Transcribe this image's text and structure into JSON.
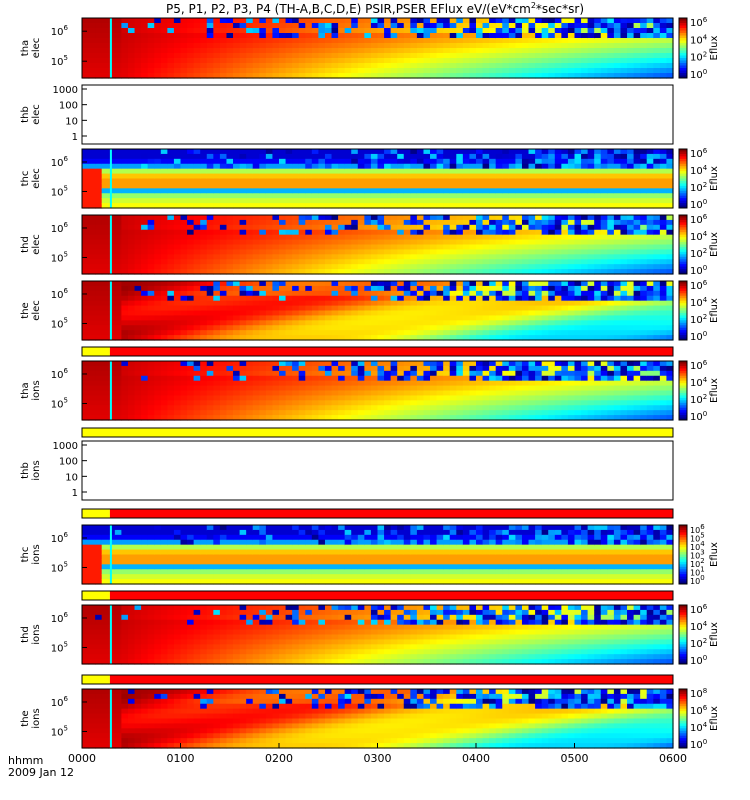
{
  "title": "P5, P1, P2, P3, P4 (TH-A,B,C,D,E) PSIR,PSER EFlux eV/(eV*cm",
  "title_sup": "2",
  "title_tail": "*sec*sr)",
  "footer": {
    "label_line1": "hhmm",
    "label_line2": "2009 Jan 12"
  },
  "colorbar_label": "Eflux",
  "colors": {
    "red": "#ff0000",
    "yellow": "#ffff00",
    "black": "#000000"
  },
  "chart_data": {
    "type": "heatmap",
    "x_ticks": [
      "0000",
      "0100",
      "0200",
      "0300",
      "0400",
      "0500",
      "0600"
    ],
    "xlim": [
      "00:00",
      "06:00"
    ],
    "panels": [
      {
        "id": "tha-elec",
        "kind": "spectrogram",
        "label": [
          "tha",
          "elec"
        ],
        "yticks": [
          "10",
          "10"
        ],
        "ysup": [
          "6",
          "5"
        ],
        "cbar": [
          "10",
          "10",
          "10",
          "10"
        ],
        "cbar_sup": [
          "6",
          "4",
          "2",
          "0"
        ]
      },
      {
        "id": "thb-elec",
        "kind": "empty",
        "label": [
          "thb",
          "elec"
        ],
        "yticks": [
          "1000",
          "100",
          "10",
          "1"
        ]
      },
      {
        "id": "thc-elec",
        "kind": "spectrogram",
        "label": [
          "thc",
          "elec"
        ],
        "yticks": [
          "10",
          "10"
        ],
        "ysup": [
          "6",
          "5"
        ],
        "cbar": [
          "10",
          "10",
          "10",
          "10"
        ],
        "cbar_sup": [
          "6",
          "4",
          "2",
          "0"
        ]
      },
      {
        "id": "thd-elec",
        "kind": "spectrogram",
        "label": [
          "thd",
          "elec"
        ],
        "yticks": [
          "10",
          "10"
        ],
        "ysup": [
          "6",
          "5"
        ],
        "cbar": [
          "10",
          "10",
          "10",
          "10"
        ],
        "cbar_sup": [
          "6",
          "4",
          "2",
          "0"
        ]
      },
      {
        "id": "the-elec",
        "kind": "spectrogram",
        "label": [
          "the",
          "elec"
        ],
        "yticks": [
          "10",
          "10"
        ],
        "ysup": [
          "6",
          "5"
        ],
        "cbar": [
          "10",
          "10",
          "10",
          "10"
        ],
        "cbar_sup": [
          "6",
          "4",
          "2",
          "0"
        ]
      },
      {
        "id": "tha-ions",
        "kind": "spectrogram",
        "label": [
          "tha",
          "ions"
        ],
        "yticks": [
          "10",
          "10"
        ],
        "ysup": [
          "6",
          "5"
        ],
        "cbar": [
          "10",
          "10",
          "10",
          "10"
        ],
        "cbar_sup": [
          "6",
          "4",
          "2",
          "0"
        ]
      },
      {
        "id": "thb-ions",
        "kind": "empty",
        "label": [
          "thb",
          "ions"
        ],
        "yticks": [
          "1000",
          "100",
          "10",
          "1"
        ]
      },
      {
        "id": "thc-ions",
        "kind": "spectrogram",
        "label": [
          "thc",
          "ions"
        ],
        "yticks": [
          "10",
          "10"
        ],
        "ysup": [
          "6",
          "5"
        ],
        "cbar": [
          "10",
          "10",
          "10",
          "10",
          "10",
          "10",
          "10"
        ],
        "cbar_sup": [
          "6",
          "5",
          "4",
          "3",
          "2",
          "1",
          "0"
        ]
      },
      {
        "id": "thd-ions",
        "kind": "spectrogram",
        "label": [
          "thd",
          "ions"
        ],
        "yticks": [
          "10",
          "10"
        ],
        "ysup": [
          "6",
          "5"
        ],
        "cbar": [
          "10",
          "10",
          "10",
          "10"
        ],
        "cbar_sup": [
          "6",
          "4",
          "2",
          "0"
        ]
      },
      {
        "id": "the-ions",
        "kind": "spectrogram",
        "label": [
          "the",
          "ions"
        ],
        "yticks": [
          "10",
          "10"
        ],
        "ysup": [
          "6",
          "5"
        ],
        "cbar": [
          "10",
          "10",
          "10",
          "10"
        ],
        "cbar_sup": [
          "8",
          "6",
          "4",
          "0"
        ]
      }
    ],
    "mode_bars": [
      {
        "after": "the-elec",
        "yellow_until": "00:17",
        "rest": "red"
      },
      {
        "after": "tha-ions",
        "yellow_until": "06:00",
        "rest": "yellow"
      },
      {
        "after": "thb-ions",
        "yellow_until": "00:17",
        "rest": "red"
      },
      {
        "after": "thc-ions",
        "yellow_until": "00:17",
        "rest": "red"
      },
      {
        "after": "thd-ions",
        "yellow_until": "00:17",
        "rest": "red"
      }
    ]
  }
}
